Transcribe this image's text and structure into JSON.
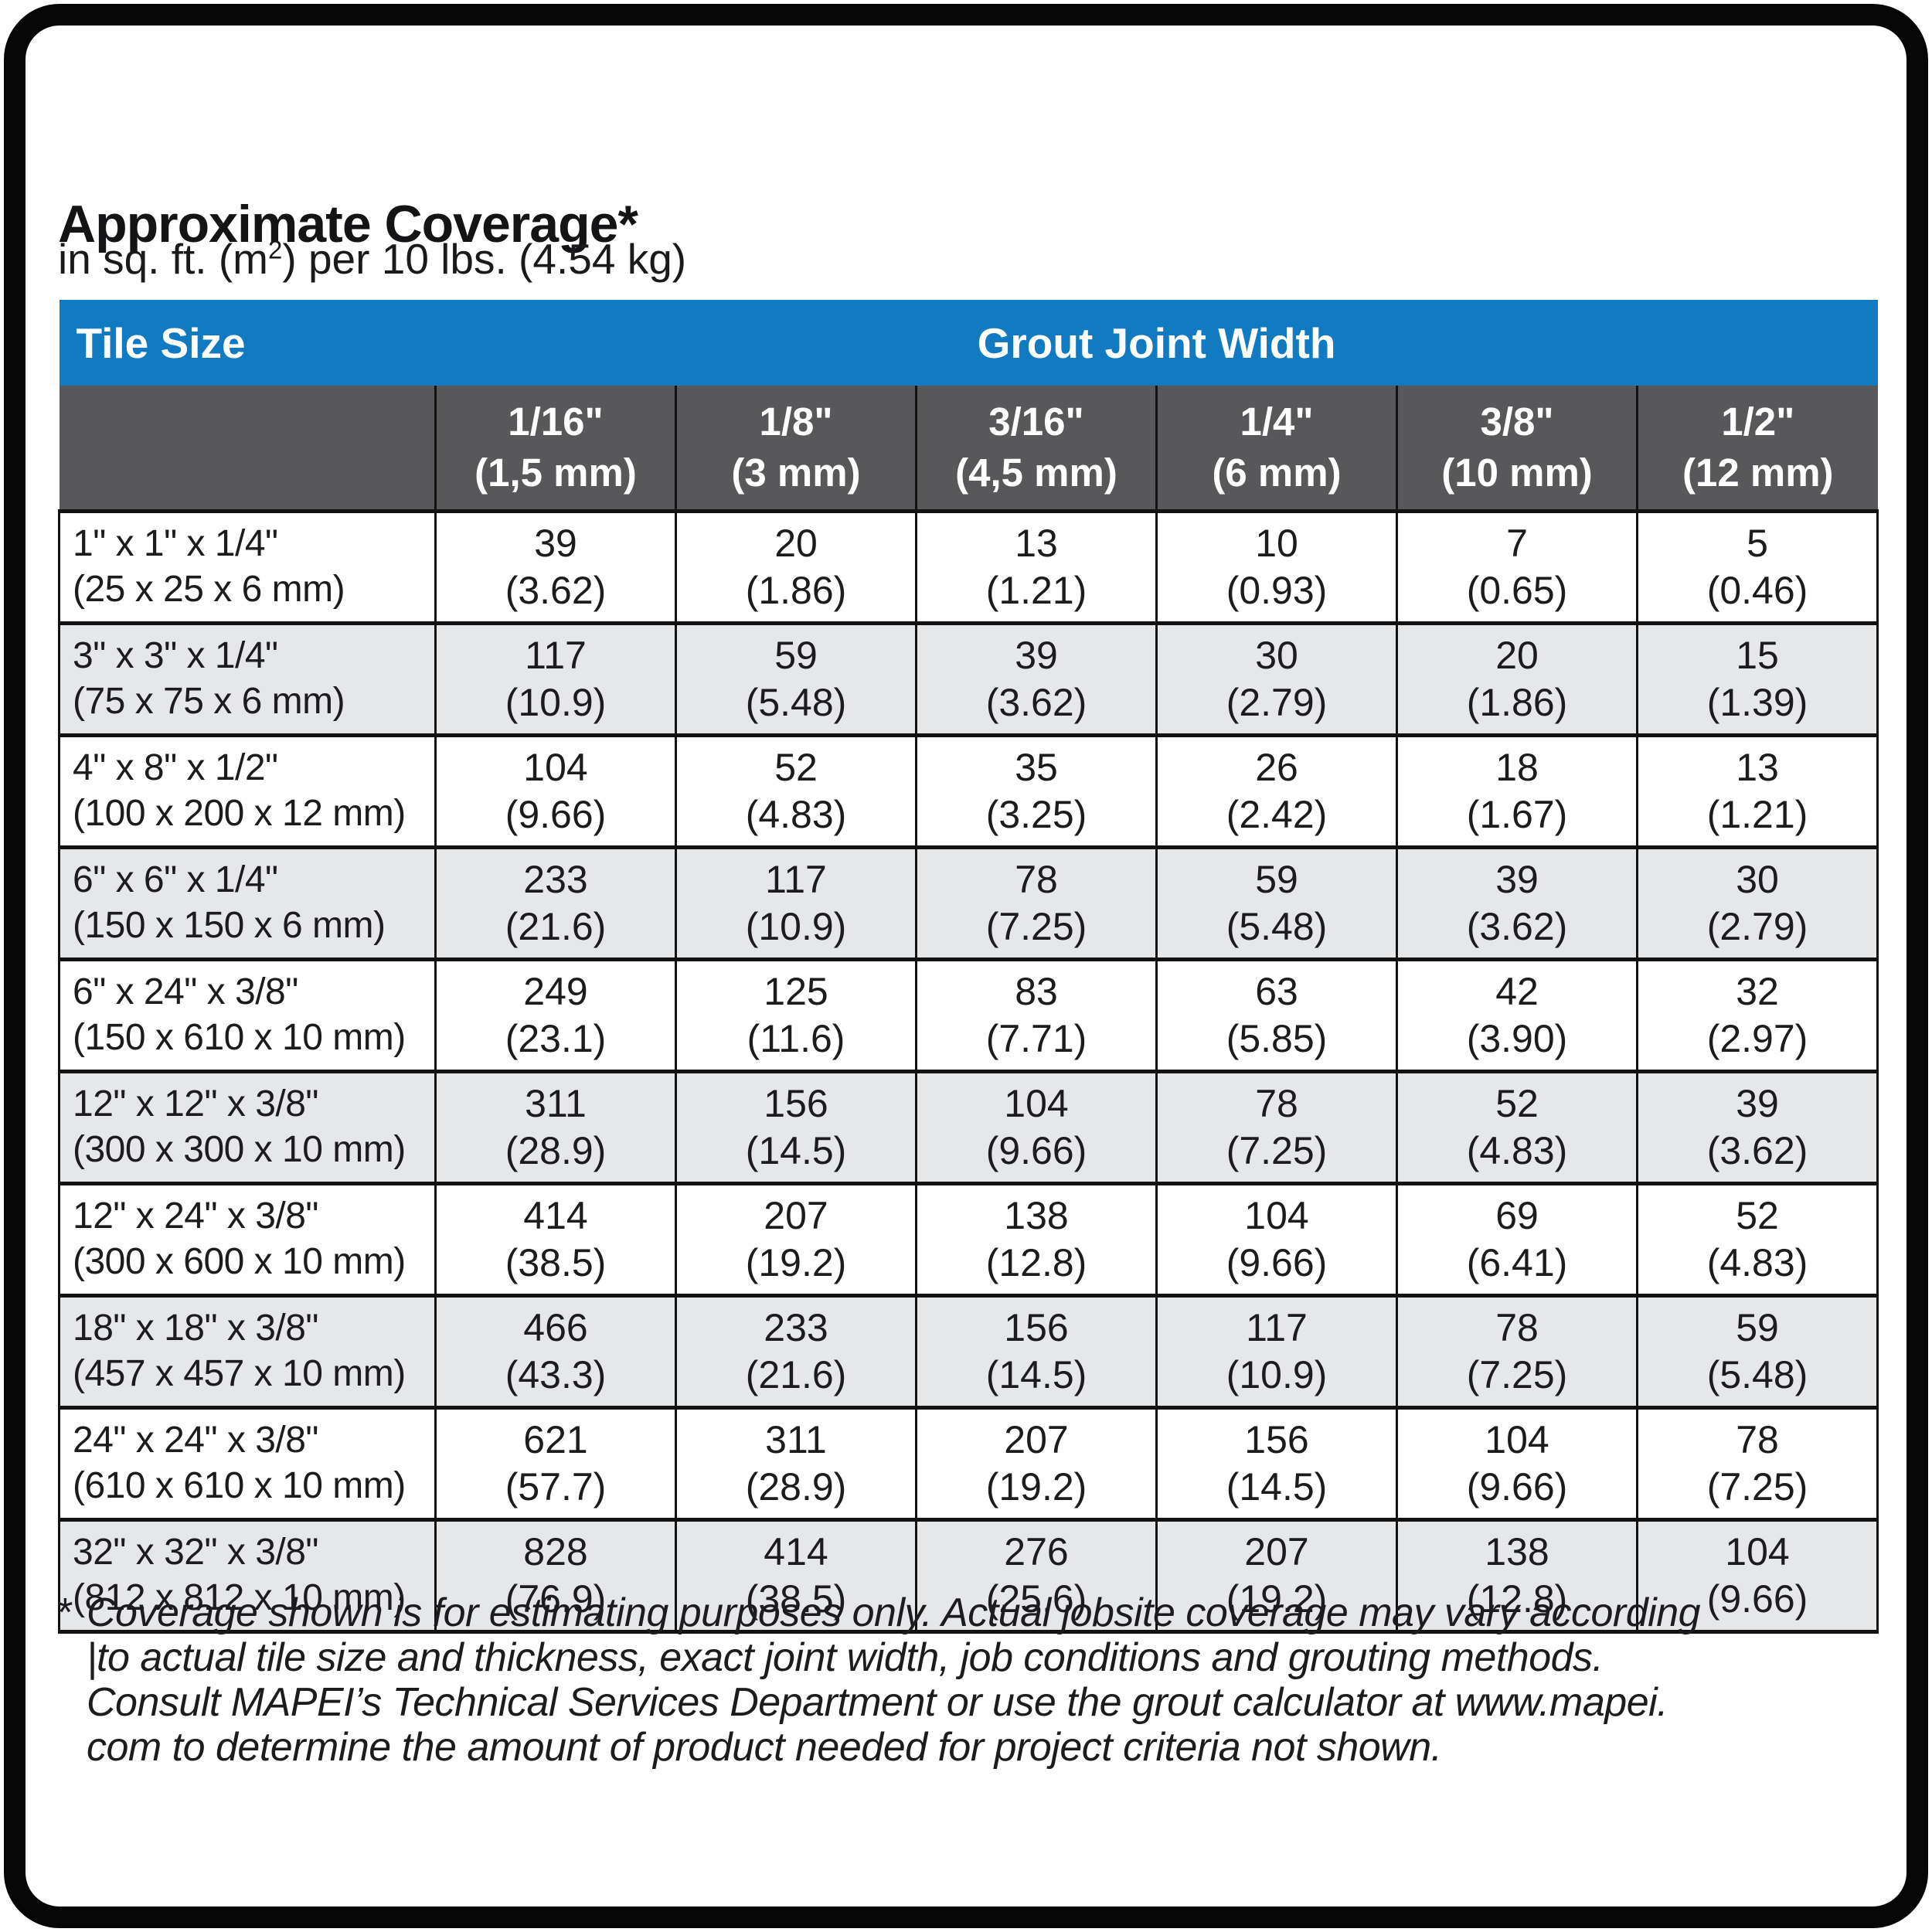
{
  "page": {
    "title": "Approximate Coverage*",
    "subtitle": {
      "pre": "in sq. ft. (m",
      "sup": "2",
      "post": ") per 10 lbs. (4.54 kg)"
    }
  },
  "table": {
    "header": {
      "tile_size": "Tile Size",
      "grout_joint_width": "Grout Joint Width"
    },
    "columns": [
      {
        "inch": "1/16\"",
        "metric": "(1,5 mm)"
      },
      {
        "inch": "1/8\"",
        "metric": "(3 mm)"
      },
      {
        "inch": "3/16\"",
        "metric": "(4,5 mm)"
      },
      {
        "inch": "1/4\"",
        "metric": "(6 mm)"
      },
      {
        "inch": "3/8\"",
        "metric": "(10 mm)"
      },
      {
        "inch": "1/2\"",
        "metric": "(12 mm)"
      }
    ],
    "rows": [
      {
        "size_in": "1\" x 1\" x 1/4\"",
        "size_mm": "(25 x 25 x 6 mm)",
        "values": [
          [
            "39",
            "(3.62)"
          ],
          [
            "20",
            "(1.86)"
          ],
          [
            "13",
            "(1.21)"
          ],
          [
            "10",
            "(0.93)"
          ],
          [
            "7",
            "(0.65)"
          ],
          [
            "5",
            "(0.46)"
          ]
        ]
      },
      {
        "size_in": "3\" x 3\" x 1/4\"",
        "size_mm": "(75 x 75 x 6 mm)",
        "values": [
          [
            "117",
            "(10.9)"
          ],
          [
            "59",
            "(5.48)"
          ],
          [
            "39",
            "(3.62)"
          ],
          [
            "30",
            "(2.79)"
          ],
          [
            "20",
            "(1.86)"
          ],
          [
            "15",
            "(1.39)"
          ]
        ]
      },
      {
        "size_in": "4\" x 8\" x 1/2\"",
        "size_mm": "(100 x 200 x 12 mm)",
        "values": [
          [
            "104",
            "(9.66)"
          ],
          [
            "52",
            "(4.83)"
          ],
          [
            "35",
            "(3.25)"
          ],
          [
            "26",
            "(2.42)"
          ],
          [
            "18",
            "(1.67)"
          ],
          [
            "13",
            "(1.21)"
          ]
        ]
      },
      {
        "size_in": "6\" x 6\" x 1/4\"",
        "size_mm": "(150 x 150 x 6 mm)",
        "values": [
          [
            "233",
            "(21.6)"
          ],
          [
            "117",
            "(10.9)"
          ],
          [
            "78",
            "(7.25)"
          ],
          [
            "59",
            "(5.48)"
          ],
          [
            "39",
            "(3.62)"
          ],
          [
            "30",
            "(2.79)"
          ]
        ]
      },
      {
        "size_in": "6\" x 24\" x 3/8\"",
        "size_mm": "(150 x 610 x 10 mm)",
        "values": [
          [
            "249",
            "(23.1)"
          ],
          [
            "125",
            "(11.6)"
          ],
          [
            "83",
            "(7.71)"
          ],
          [
            "63",
            "(5.85)"
          ],
          [
            "42",
            "(3.90)"
          ],
          [
            "32",
            "(2.97)"
          ]
        ]
      },
      {
        "size_in": "12\" x 12\" x 3/8\"",
        "size_mm": "(300 x 300 x 10 mm)",
        "values": [
          [
            "311",
            "(28.9)"
          ],
          [
            "156",
            "(14.5)"
          ],
          [
            "104",
            "(9.66)"
          ],
          [
            "78",
            "(7.25)"
          ],
          [
            "52",
            "(4.83)"
          ],
          [
            "39",
            "(3.62)"
          ]
        ]
      },
      {
        "size_in": "12\" x 24\" x 3/8\"",
        "size_mm": "(300 x 600 x 10 mm)",
        "values": [
          [
            "414",
            "(38.5)"
          ],
          [
            "207",
            "(19.2)"
          ],
          [
            "138",
            "(12.8)"
          ],
          [
            "104",
            "(9.66)"
          ],
          [
            "69",
            "(6.41)"
          ],
          [
            "52",
            "(4.83)"
          ]
        ]
      },
      {
        "size_in": "18\" x 18\" x 3/8\"",
        "size_mm": "(457 x 457 x 10 mm)",
        "values": [
          [
            "466",
            "(43.3)"
          ],
          [
            "233",
            "(21.6)"
          ],
          [
            "156",
            "(14.5)"
          ],
          [
            "117",
            "(10.9)"
          ],
          [
            "78",
            "(7.25)"
          ],
          [
            "59",
            "(5.48)"
          ]
        ]
      },
      {
        "size_in": "24\" x 24\" x 3/8\"",
        "size_mm": "(610 x 610 x 10 mm)",
        "values": [
          [
            "621",
            "(57.7)"
          ],
          [
            "311",
            "(28.9)"
          ],
          [
            "207",
            "(19.2)"
          ],
          [
            "156",
            "(14.5)"
          ],
          [
            "104",
            "(9.66)"
          ],
          [
            "78",
            "(7.25)"
          ]
        ]
      },
      {
        "size_in": "32\" x 32\" x 3/8\"",
        "size_mm": "(812 x 812 x 10 mm)",
        "values": [
          [
            "828",
            "(76.9)"
          ],
          [
            "414",
            "(38.5)"
          ],
          [
            "276",
            "(25.6)"
          ],
          [
            "207",
            "(19.2)"
          ],
          [
            "138",
            "(12.8)"
          ],
          [
            "104",
            "(9.66)"
          ]
        ]
      }
    ]
  },
  "footnote": {
    "marker": "*",
    "lines": [
      "Coverage shown is for estimating purposes only. Actual jobsite coverage may vary according",
      "|to actual tile size and thickness, exact joint width, job conditions and grouting methods.",
      "Consult MAPEI’s Technical Services Department or use the grout calculator at www.mapei.",
      "com to determine the amount of product needed for project criteria not shown."
    ]
  },
  "colors": {
    "header_blue": "#117ac1",
    "subheader_gray": "#58585a",
    "alt_row_gray": "#e6e7e8",
    "border_black": "#121212"
  }
}
